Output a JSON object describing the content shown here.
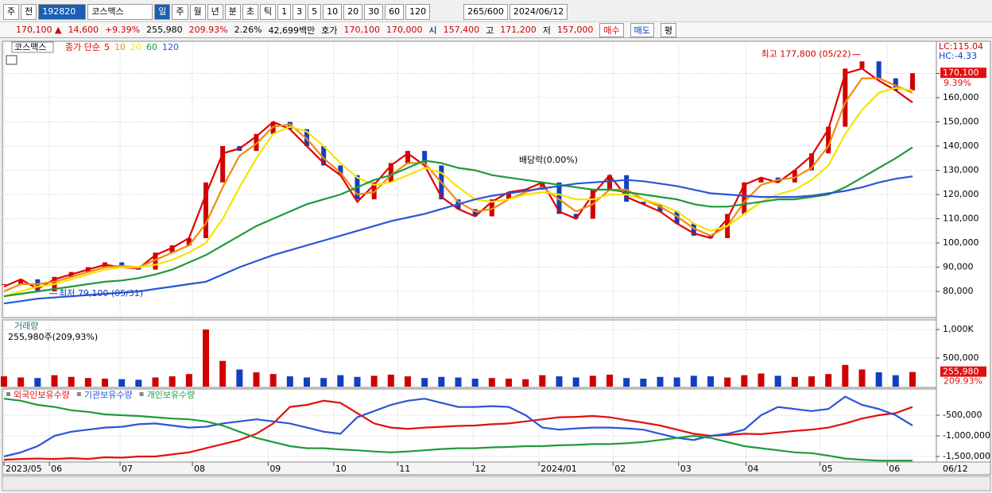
{
  "toolbar": {
    "items": [
      "주",
      "전",
      "192820",
      "코스맥스",
      "일",
      "주",
      "월",
      "년",
      "분",
      "초",
      "틱",
      "1",
      "3",
      "5",
      "10",
      "20",
      "30",
      "60",
      "120",
      "265/600",
      "2024/06/12"
    ]
  },
  "info_bar": {
    "items": [
      {
        "text": "170,100 ▲",
        "color": "#d00000"
      },
      {
        "text": "14,600",
        "color": "#d00000"
      },
      {
        "text": "+9.39%",
        "color": "#d00000"
      },
      {
        "text": "255,980",
        "color": "#000000"
      },
      {
        "text": "209.93%",
        "color": "#d00000"
      },
      {
        "text": "2.26%",
        "color": "#000000"
      },
      {
        "text": "42,699백만",
        "color": "#000000"
      },
      {
        "text": "호가",
        "color": "#000000"
      },
      {
        "text": "170,100",
        "color": "#d00000"
      },
      {
        "text": "170,000",
        "color": "#d00000"
      },
      {
        "text": "시",
        "color": "#000000"
      },
      {
        "text": "157,400",
        "color": "#d00000"
      },
      {
        "text": "고",
        "color": "#000000"
      },
      {
        "text": "171,200",
        "color": "#d00000"
      },
      {
        "text": "저",
        "color": "#000000"
      },
      {
        "text": "157,000",
        "color": "#d00000"
      },
      {
        "text": "매수",
        "color": "#d00000"
      },
      {
        "text": "매도",
        "color": "#0030c0"
      },
      {
        "text": "평",
        "color": "#000000"
      }
    ]
  },
  "chart_data": [
    {
      "type": "candlestick",
      "title": "코스맥스",
      "subtitle": "종가 단순",
      "corner_labels": [
        "LC:115.04",
        "HC:-4.33"
      ],
      "ylim": [
        69200,
        182300
      ],
      "yticks": [
        {
          "value": 80000,
          "label": "80,000"
        },
        {
          "value": 90000,
          "label": "90,000"
        },
        {
          "value": 100000,
          "label": "100,000"
        },
        {
          "value": 110000,
          "label": "110,000"
        },
        {
          "value": 120000,
          "label": "120,000"
        },
        {
          "value": 130000,
          "label": "130,000"
        },
        {
          "value": 140000,
          "label": "140,000"
        },
        {
          "value": 150000,
          "label": "150,000"
        },
        {
          "value": 160000,
          "label": "160,000"
        },
        {
          "value": 170000,
          "label": "170,000"
        }
      ],
      "grid": true,
      "price_tag": {
        "value": 170100,
        "label": "170,100",
        "change": "9.39%"
      },
      "annotations": [
        {
          "text": "최고 177,800 (05/22)",
          "value": 177800,
          "x": 51
        },
        {
          "text": "최저 79,100 (05/31)",
          "value": 79100,
          "x": 2.7
        },
        {
          "text": "배당락(0.00%)"
        }
      ],
      "series": [
        {
          "name": "종가",
          "color": "#d00000",
          "down_color": "#1040c0",
          "values": [
            83000,
            85000,
            80000,
            86000,
            88000,
            90000,
            92000,
            90000,
            89000,
            96000,
            99000,
            102000,
            125000,
            140000,
            138000,
            145000,
            150000,
            147000,
            140000,
            132000,
            128000,
            118000,
            125000,
            133000,
            138000,
            132000,
            118000,
            114000,
            111000,
            118000,
            121000,
            122000,
            125000,
            112000,
            110000,
            122000,
            128000,
            117000,
            116000,
            113000,
            108000,
            103000,
            102000,
            112000,
            125000,
            127000,
            125000,
            130000,
            137000,
            148000,
            172000,
            175000,
            168000,
            163000,
            170100
          ]
        },
        {
          "name": "5",
          "color": "#e00000",
          "values": [
            82000,
            85000,
            81000,
            85000,
            87000,
            89000,
            91000,
            90000,
            89500,
            95000,
            98000,
            102000,
            120000,
            137000,
            139000,
            144000,
            150000,
            147000,
            140000,
            133000,
            128000,
            117000,
            124000,
            132000,
            137000,
            132000,
            119000,
            114000,
            111000,
            117000,
            121000,
            122000,
            125000,
            113000,
            110000,
            120000,
            128000,
            119000,
            116000,
            113000,
            108000,
            104000,
            102000,
            110000,
            124000,
            127000,
            125000,
            130000,
            136000,
            147000,
            170000,
            172000,
            167000,
            163000,
            158000
          ]
        },
        {
          "name": "10",
          "color": "#f08a10",
          "values": [
            80000,
            83000,
            83000,
            84000,
            86000,
            88000,
            90000,
            90500,
            90000,
            93000,
            96000,
            99000,
            108000,
            123000,
            136000,
            141000,
            148000,
            149000,
            143000,
            135000,
            129000,
            120000,
            121000,
            128000,
            133000,
            133000,
            125000,
            117000,
            113000,
            114000,
            118000,
            121000,
            123000,
            118000,
            113000,
            116000,
            122000,
            122000,
            118000,
            115000,
            111000,
            106000,
            103000,
            107000,
            117000,
            124000,
            126000,
            127000,
            131000,
            140000,
            158000,
            168000,
            168000,
            165000,
            162000
          ]
        },
        {
          "name": "20",
          "color": "#f4e400",
          "values": [
            78000,
            80000,
            82000,
            83000,
            85000,
            87000,
            89000,
            90000,
            90000,
            91000,
            93000,
            96000,
            100000,
            110000,
            123000,
            135000,
            145000,
            148000,
            146000,
            140000,
            133000,
            127000,
            124000,
            125000,
            128000,
            131000,
            129000,
            123000,
            118000,
            117000,
            118000,
            120000,
            121000,
            120000,
            118000,
            118000,
            120000,
            120000,
            118000,
            116000,
            113000,
            108000,
            105000,
            107000,
            112000,
            117000,
            120000,
            122000,
            126000,
            132000,
            145000,
            155000,
            162000,
            164000,
            163000
          ]
        },
        {
          "name": "60",
          "color": "#1f9a3a",
          "values": [
            78000,
            79000,
            80000,
            81000,
            82000,
            83000,
            84000,
            84500,
            85500,
            87000,
            89000,
            92000,
            95000,
            99000,
            103000,
            107000,
            110000,
            113000,
            116000,
            118000,
            120000,
            123000,
            126000,
            128000,
            131000,
            134000,
            133000,
            131000,
            130000,
            128000,
            127000,
            126000,
            125000,
            124000,
            123000,
            122000,
            122000,
            121000,
            120000,
            119000,
            118000,
            116000,
            115000,
            115000,
            116000,
            117000,
            118000,
            118000,
            119000,
            120000,
            123000,
            127000,
            131000,
            135000,
            139500
          ]
        },
        {
          "name": "120",
          "color": "#2b55d6",
          "values": [
            75000,
            76000,
            77000,
            77500,
            78000,
            78500,
            79000,
            79500,
            80000,
            81000,
            82000,
            83000,
            84000,
            87000,
            90000,
            92500,
            95000,
            97000,
            99000,
            101000,
            103000,
            105000,
            107000,
            109000,
            110500,
            112000,
            114000,
            116000,
            118000,
            119500,
            120500,
            121500,
            122500,
            123500,
            124500,
            125000,
            125500,
            126000,
            125500,
            124500,
            123500,
            122000,
            120500,
            120000,
            119500,
            119000,
            119000,
            119000,
            119500,
            120500,
            121500,
            123000,
            125000,
            126500,
            127500
          ]
        }
      ]
    },
    {
      "type": "bar",
      "title": "거래량",
      "subtitle": "255,980주(209,93%)",
      "ylim": [
        0,
        1140000
      ],
      "yticks": [
        {
          "value": 1000000,
          "label": "1,000K"
        },
        {
          "value": 500000,
          "label": "500,000"
        }
      ],
      "grid": true,
      "up_color": "#d00000",
      "down_color": "#1040c0",
      "volume_tag": {
        "value": 255980,
        "label": "255,980",
        "change": "209.93%"
      },
      "values": [
        180000,
        160000,
        150000,
        200000,
        170000,
        150000,
        140000,
        130000,
        120000,
        160000,
        180000,
        220000,
        1000000,
        450000,
        300000,
        250000,
        220000,
        180000,
        160000,
        150000,
        200000,
        170000,
        190000,
        210000,
        180000,
        150000,
        170000,
        160000,
        140000,
        150000,
        140000,
        130000,
        200000,
        180000,
        160000,
        190000,
        210000,
        150000,
        140000,
        170000,
        160000,
        190000,
        180000,
        160000,
        200000,
        230000,
        190000,
        170000,
        180000,
        220000,
        380000,
        300000,
        250000,
        200000,
        255980
      ]
    },
    {
      "type": "line",
      "ylim": [
        -1635000,
        77000
      ],
      "yticks": [
        {
          "value": -500000,
          "label": "-500,000"
        },
        {
          "value": -1000000,
          "label": "-1,000,000"
        },
        {
          "value": -1500000,
          "label": "-1,500,000"
        }
      ],
      "grid": true,
      "xlim": [
        0,
        54
      ],
      "xticks": [
        {
          "value": 0,
          "label": "2023/05"
        },
        {
          "value": 2.7,
          "label": "06"
        },
        {
          "value": 6.9,
          "label": "07"
        },
        {
          "value": 11.2,
          "label": "08"
        },
        {
          "value": 15.7,
          "label": "09"
        },
        {
          "value": 19.6,
          "label": "10"
        },
        {
          "value": 23.4,
          "label": "11"
        },
        {
          "value": 27.9,
          "label": "12"
        },
        {
          "value": 31.8,
          "label": "2024/01"
        },
        {
          "value": 36.2,
          "label": "02"
        },
        {
          "value": 40.1,
          "label": "03"
        },
        {
          "value": 44.1,
          "label": "04"
        },
        {
          "value": 48.5,
          "label": "05"
        },
        {
          "value": 52.5,
          "label": "06"
        }
      ],
      "end_label": "06/12",
      "series": [
        {
          "name": "외국인보유수량",
          "color": "#e01010",
          "values": [
            -1580000,
            -1560000,
            -1550000,
            -1560000,
            -1540000,
            -1560000,
            -1520000,
            -1530000,
            -1500000,
            -1500000,
            -1450000,
            -1400000,
            -1300000,
            -1200000,
            -1100000,
            -950000,
            -700000,
            -300000,
            -250000,
            -150000,
            -200000,
            -450000,
            -700000,
            -800000,
            -830000,
            -800000,
            -780000,
            -760000,
            -750000,
            -720000,
            -700000,
            -650000,
            -600000,
            -550000,
            -540000,
            -520000,
            -550000,
            -620000,
            -680000,
            -750000,
            -850000,
            -950000,
            -1000000,
            -980000,
            -950000,
            -960000,
            -920000,
            -880000,
            -850000,
            -800000,
            -700000,
            -580000,
            -500000,
            -450000,
            -300000
          ]
        },
        {
          "name": "기관보유수량",
          "color": "#2b55d6",
          "values": [
            -1500000,
            -1400000,
            -1250000,
            -1000000,
            -900000,
            -850000,
            -800000,
            -780000,
            -720000,
            -700000,
            -750000,
            -800000,
            -780000,
            -700000,
            -650000,
            -600000,
            -650000,
            -700000,
            -800000,
            -900000,
            -950000,
            -550000,
            -400000,
            -250000,
            -150000,
            -100000,
            -200000,
            -300000,
            -300000,
            -280000,
            -300000,
            -500000,
            -800000,
            -850000,
            -820000,
            -800000,
            -800000,
            -820000,
            -850000,
            -950000,
            -1050000,
            -1100000,
            -1000000,
            -950000,
            -850000,
            -500000,
            -300000,
            -350000,
            -400000,
            -350000,
            -50000,
            -250000,
            -350000,
            -500000,
            -750000
          ]
        },
        {
          "name": "개인보유수량",
          "color": "#1f9a3a",
          "values": [
            -100000,
            -150000,
            -250000,
            -300000,
            -380000,
            -420000,
            -480000,
            -500000,
            -520000,
            -550000,
            -580000,
            -600000,
            -650000,
            -750000,
            -900000,
            -1050000,
            -1150000,
            -1250000,
            -1300000,
            -1300000,
            -1330000,
            -1350000,
            -1380000,
            -1400000,
            -1380000,
            -1350000,
            -1320000,
            -1300000,
            -1300000,
            -1280000,
            -1270000,
            -1250000,
            -1250000,
            -1230000,
            -1220000,
            -1200000,
            -1200000,
            -1180000,
            -1150000,
            -1100000,
            -1050000,
            -1000000,
            -1050000,
            -1150000,
            -1250000,
            -1300000,
            -1350000,
            -1400000,
            -1420000,
            -1480000,
            -1550000,
            -1580000,
            -1600000,
            -1600000,
            -1600000
          ]
        }
      ]
    }
  ]
}
